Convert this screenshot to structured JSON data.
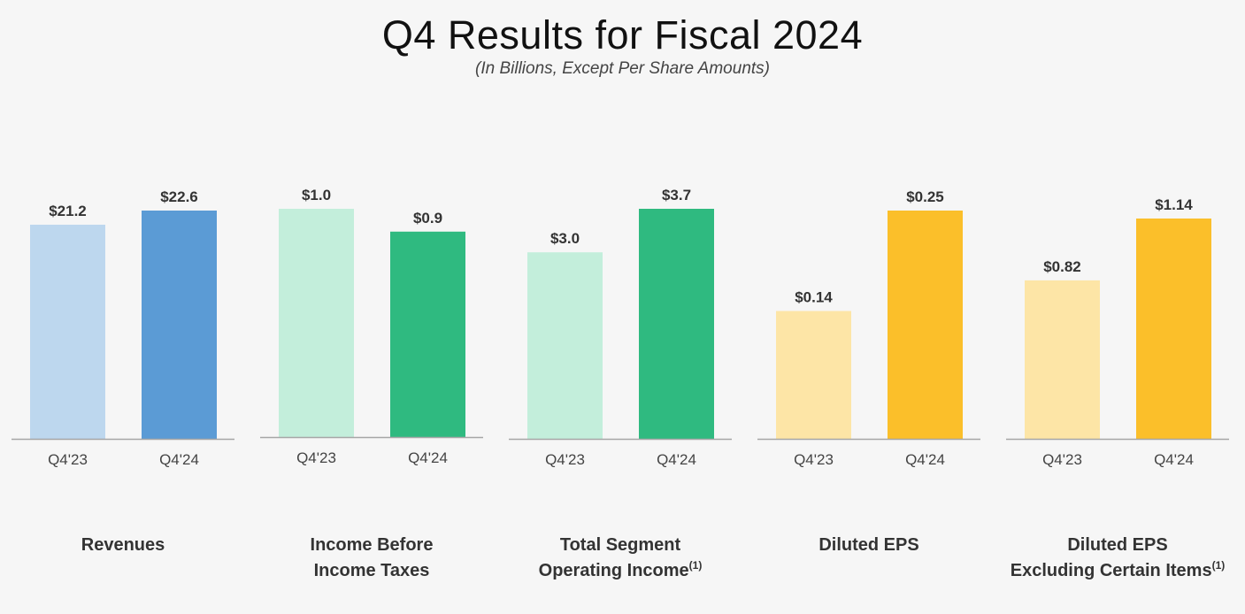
{
  "header": {
    "title": "Q4 Results for Fiscal 2024",
    "subtitle": "(In Billions, Except Per Share Amounts)"
  },
  "chart_data": [
    {
      "type": "bar",
      "title_lines": [
        "Revenues"
      ],
      "footnote": "",
      "categories": [
        "Q4'23",
        "Q4'24"
      ],
      "values": [
        21.2,
        22.6
      ],
      "value_labels": [
        "$21.2",
        "$22.6"
      ],
      "colors": [
        "#bdd7ee",
        "#5b9bd5"
      ]
    },
    {
      "type": "bar",
      "title_lines": [
        "Income Before",
        "Income Taxes"
      ],
      "footnote": "",
      "categories": [
        "Q4'23",
        "Q4'24"
      ],
      "values": [
        1.0,
        0.9
      ],
      "value_labels": [
        "$1.0",
        "$0.9"
      ],
      "colors": [
        "#c3eedb",
        "#2fba80"
      ]
    },
    {
      "type": "bar",
      "title_lines": [
        "Total Segment",
        "Operating Income"
      ],
      "footnote": "(1)",
      "categories": [
        "Q4'23",
        "Q4'24"
      ],
      "values": [
        3.0,
        3.7
      ],
      "value_labels": [
        "$3.0",
        "$3.7"
      ],
      "colors": [
        "#c3eedb",
        "#2fba80"
      ]
    },
    {
      "type": "bar",
      "title_lines": [
        "Diluted EPS"
      ],
      "footnote": "",
      "categories": [
        "Q4'23",
        "Q4'24"
      ],
      "values": [
        0.14,
        0.25
      ],
      "value_labels": [
        "$0.14",
        "$0.25"
      ],
      "colors": [
        "#fde5a6",
        "#fbbf2a"
      ]
    },
    {
      "type": "bar",
      "title_lines": [
        "Diluted EPS",
        "Excluding Certain Items"
      ],
      "footnote": "(1)",
      "categories": [
        "Q4'23",
        "Q4'24"
      ],
      "values": [
        0.82,
        1.14
      ],
      "value_labels": [
        "$0.82",
        "$1.14"
      ],
      "colors": [
        "#fde5a6",
        "#fbbf2a"
      ]
    }
  ]
}
